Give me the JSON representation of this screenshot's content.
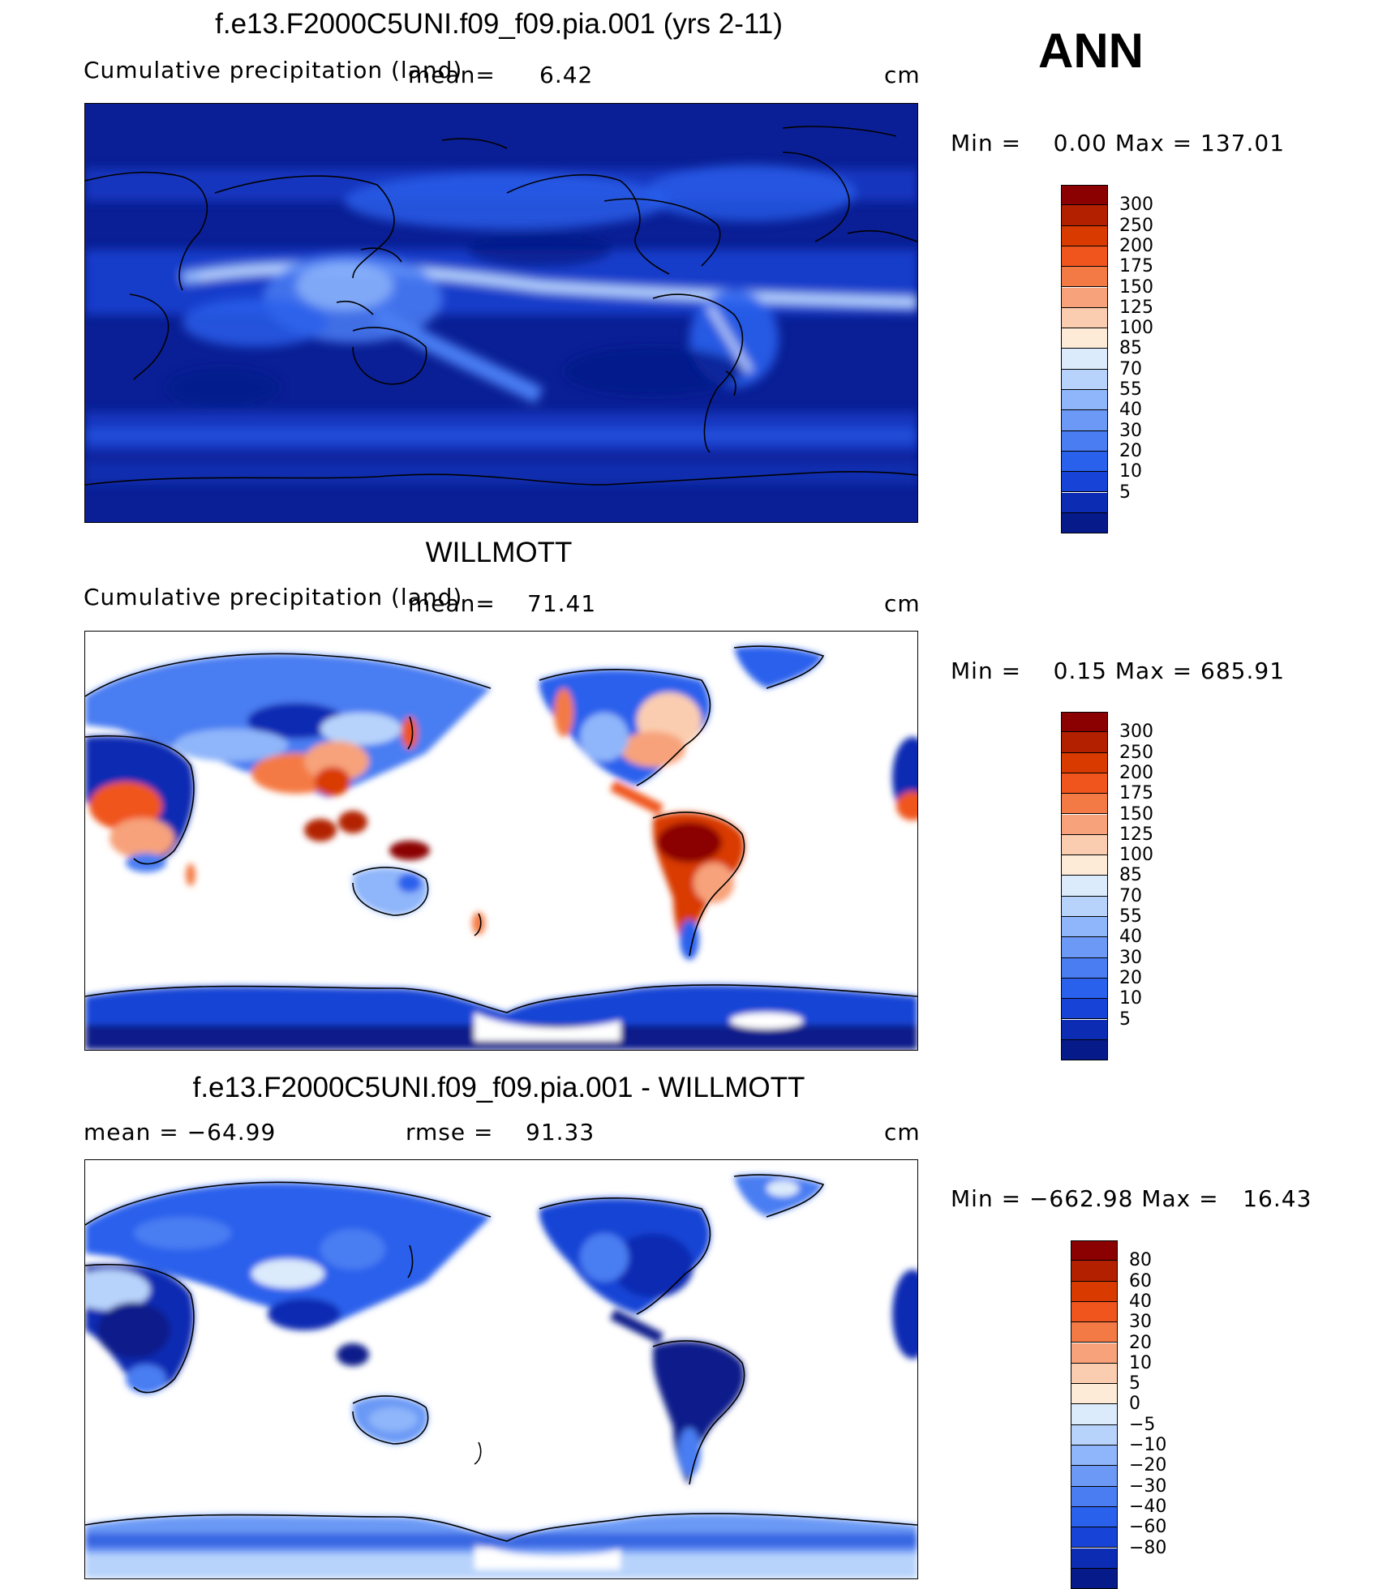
{
  "season_label": "ANN",
  "panels": [
    {
      "title": "f.e13.F2000C5UNI.f09_f09.pia.001 (yrs 2-11)",
      "left_label": "Cumulative precipitation (land)",
      "stat_label": "mean=",
      "stat_value": "6.42",
      "stat2_label": "",
      "stat2_value": "",
      "units": "cm",
      "minmax": "Min =    0.00 Max = 137.01",
      "colorbar": "absolute"
    },
    {
      "title": "WILLMOTT",
      "left_label": "Cumulative precipitation (land)",
      "stat_label": "mean=",
      "stat_value": "71.41",
      "stat2_label": "",
      "stat2_value": "",
      "units": "cm",
      "minmax": "Min =    0.15 Max = 685.91",
      "colorbar": "absolute"
    },
    {
      "title": "f.e13.F2000C5UNI.f09_f09.pia.001 - WILLMOTT",
      "left_label": "mean = −64.99",
      "stat_label": "rmse =",
      "stat_value": "91.33",
      "stat2_label": "",
      "stat2_value": "",
      "units": "cm",
      "minmax": "Min = −662.98 Max =   16.43",
      "colorbar": "difference"
    }
  ],
  "colorbars": {
    "absolute": {
      "levels": [
        "300",
        "250",
        "200",
        "175",
        "150",
        "125",
        "100",
        "85",
        "70",
        "55",
        "40",
        "30",
        "20",
        "10",
        "5"
      ],
      "colors": [
        "#8b0000",
        "#b22000",
        "#d93a00",
        "#f0551e",
        "#f47a45",
        "#f7a27a",
        "#fbcdb0",
        "#fdebd8",
        "#dcebfb",
        "#b7d3fb",
        "#8fb6fa",
        "#6b99f5",
        "#4a7df2",
        "#2960ec",
        "#1744d6",
        "#0b2cb3",
        "#071a8a"
      ]
    },
    "difference": {
      "levels": [
        "80",
        "60",
        "40",
        "30",
        "20",
        "10",
        "5",
        "0",
        "−5",
        "−10",
        "−20",
        "−30",
        "−40",
        "−60",
        "−80"
      ],
      "colors": [
        "#8b0000",
        "#b22000",
        "#d93a00",
        "#f0551e",
        "#f47a45",
        "#f7a27a",
        "#fbcdb0",
        "#fdebd8",
        "#dcebfb",
        "#b7d3fb",
        "#8fb6fa",
        "#6b99f5",
        "#4a7df2",
        "#2960ec",
        "#1744d6",
        "#0b2cb3",
        "#071a8a"
      ]
    }
  },
  "chart_data": [
    {
      "type": "heatmap",
      "title": "f.e13.F2000C5UNI.f09_f09.pia.001 (yrs 2-11)",
      "variable": "Cumulative precipitation (land)",
      "units": "cm",
      "mean": 6.42,
      "min": 0.0,
      "max": 137.01,
      "contour_levels": [
        5,
        10,
        20,
        30,
        40,
        55,
        70,
        85,
        100,
        125,
        150,
        175,
        200,
        250,
        300
      ],
      "projection": "cylindrical equidistant, pacific-centered"
    },
    {
      "type": "heatmap",
      "title": "WILLMOTT",
      "variable": "Cumulative precipitation (land)",
      "units": "cm",
      "mean": 71.41,
      "min": 0.15,
      "max": 685.91,
      "contour_levels": [
        5,
        10,
        20,
        30,
        40,
        55,
        70,
        85,
        100,
        125,
        150,
        175,
        200,
        250,
        300
      ],
      "projection": "cylindrical equidistant, pacific-centered"
    },
    {
      "type": "heatmap",
      "title": "f.e13.F2000C5UNI.f09_f09.pia.001 - WILLMOTT",
      "units": "cm",
      "mean": -64.99,
      "rmse": 91.33,
      "min": -662.98,
      "max": 16.43,
      "contour_levels": [
        -80,
        -60,
        -40,
        -30,
        -20,
        -10,
        -5,
        0,
        5,
        10,
        20,
        30,
        40,
        60,
        80
      ],
      "projection": "cylindrical equidistant, pacific-centered"
    }
  ]
}
